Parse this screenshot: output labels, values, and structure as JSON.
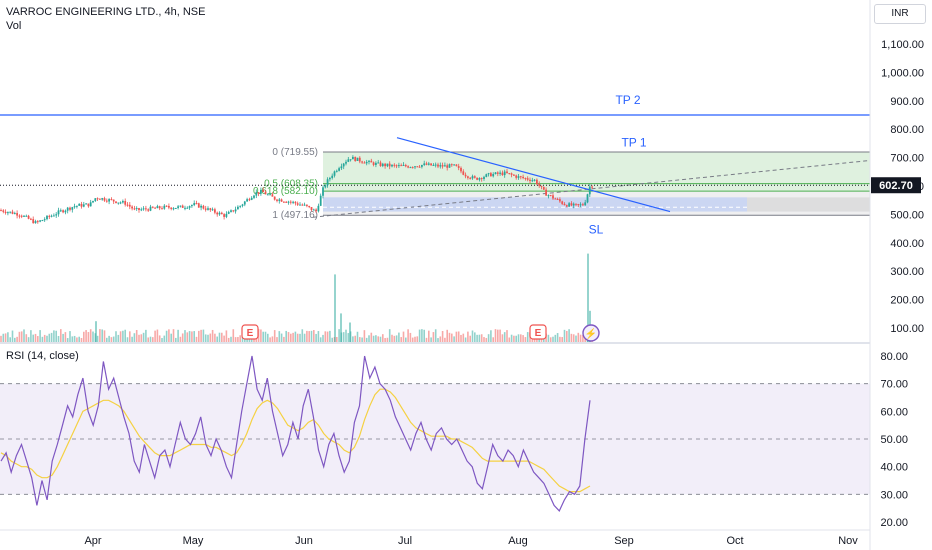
{
  "header": {
    "symbol_line": "VARROC ENGINEERING LTD., 4h, NSE",
    "volume_label": "Vol",
    "rsi_label": "RSI (14, close)",
    "currency": "INR"
  },
  "colors": {
    "up": "#26a69a",
    "down": "#ef5350",
    "target": "#2962ff",
    "fib_green": "#4caf50",
    "rsi_line": "#7e57c2",
    "rsi_ma": "#f5d142"
  },
  "chart_data": [
    {
      "type": "candlestick",
      "title": "VARROC ENGINEERING LTD., 4h, NSE",
      "ylim": [
        20,
        1230
      ],
      "y_ticks": [
        "1,100.00",
        "1,000.00",
        "900.00",
        "800.00",
        "700.00",
        "600.00",
        "500.00",
        "400.00",
        "300.00",
        "200.00",
        "100.00"
      ],
      "y_tick_values": [
        1100,
        1000,
        900,
        800,
        700,
        600,
        500,
        400,
        300,
        200,
        100
      ],
      "x_ticks": [
        "Apr",
        "May",
        "Jun",
        "Jul",
        "Aug",
        "Sep",
        "Oct",
        "Nov"
      ],
      "last_price": "602.70",
      "close_path": [
        [
          0,
          515
        ],
        [
          20,
          500
        ],
        [
          36,
          470
        ],
        [
          48,
          490
        ],
        [
          60,
          510
        ],
        [
          75,
          530
        ],
        [
          90,
          535
        ],
        [
          96,
          560
        ],
        [
          110,
          550
        ],
        [
          125,
          540
        ],
        [
          135,
          515
        ],
        [
          150,
          520
        ],
        [
          165,
          525
        ],
        [
          180,
          525
        ],
        [
          195,
          535
        ],
        [
          210,
          515
        ],
        [
          225,
          495
        ],
        [
          240,
          530
        ],
        [
          255,
          575
        ],
        [
          262,
          580
        ],
        [
          275,
          555
        ],
        [
          290,
          545
        ],
        [
          305,
          530
        ],
        [
          316,
          510
        ],
        [
          324,
          600
        ],
        [
          332,
          640
        ],
        [
          340,
          672
        ],
        [
          350,
          700
        ],
        [
          365,
          685
        ],
        [
          380,
          675
        ],
        [
          395,
          670
        ],
        [
          410,
          670
        ],
        [
          425,
          675
        ],
        [
          440,
          670
        ],
        [
          455,
          670
        ],
        [
          465,
          640
        ],
        [
          475,
          625
        ],
        [
          490,
          640
        ],
        [
          505,
          645
        ],
        [
          520,
          630
        ],
        [
          535,
          620
        ],
        [
          545,
          575
        ],
        [
          555,
          555
        ],
        [
          565,
          535
        ],
        [
          575,
          530
        ],
        [
          584,
          535
        ],
        [
          590,
          600
        ],
        [
          593,
          602.7
        ]
      ],
      "fib": {
        "levels": [
          {
            "label": "0 (719.55)",
            "value": 719.55
          },
          {
            "label": "0.5 (608.35)",
            "value": 608.35
          },
          {
            "label": "0.618 (582.10)",
            "value": 582.1
          },
          {
            "label": "1 (497.16)",
            "value": 497.16
          }
        ]
      },
      "targets": [
        {
          "label": "TP 2",
          "value": 850
        },
        {
          "label": "TP 1",
          "value": 715
        },
        {
          "label": "SL",
          "value": 497
        }
      ],
      "trendline": {
        "start_value": 770,
        "end_value": 510
      },
      "volume": {
        "ylim": [
          0,
          2000
        ],
        "spikes": [
          {
            "x": 96,
            "value": 160
          },
          {
            "x": 335,
            "value": 520
          },
          {
            "x": 341,
            "value": 220
          },
          {
            "x": 350,
            "value": 150
          },
          {
            "x": 588,
            "value": 680
          },
          {
            "x": 590,
            "value": 240
          }
        ]
      },
      "events": [
        {
          "label": "E",
          "x": 250
        },
        {
          "label": "E",
          "x": 538
        }
      ],
      "flash_event": {
        "x": 591,
        "symbol": "⚡"
      }
    },
    {
      "type": "line",
      "title": "RSI (14, close)",
      "ylim": [
        15,
        85
      ],
      "y_ticks": [
        "80.00",
        "70.00",
        "60.00",
        "50.00",
        "40.00",
        "30.00",
        "20.00"
      ],
      "y_tick_values": [
        80,
        70,
        60,
        50,
        40,
        30,
        20
      ],
      "band": [
        30,
        70
      ],
      "midline": 50,
      "series": [
        {
          "values": [
            42,
            45,
            38,
            44,
            48,
            42,
            36,
            26,
            35,
            28,
            42,
            48,
            55,
            62,
            58,
            66,
            72,
            60,
            55,
            62,
            78,
            68,
            72,
            65,
            58,
            52,
            42,
            38,
            48,
            42,
            36,
            44,
            46,
            40,
            48,
            56,
            50,
            48,
            52,
            58,
            48,
            44,
            50,
            46,
            40,
            36,
            48,
            60,
            70,
            80,
            68,
            64,
            72,
            60,
            52,
            44,
            48,
            56,
            50,
            62,
            68,
            58,
            46,
            40,
            48,
            52,
            44,
            38,
            42,
            56,
            62,
            80,
            72,
            76,
            70,
            68,
            64,
            58,
            54,
            50,
            46,
            52,
            56,
            50,
            46,
            52,
            54,
            50,
            48,
            50,
            46,
            42,
            40,
            34,
            32,
            40,
            48,
            44,
            42,
            46,
            44,
            40,
            46,
            42,
            38,
            36,
            34,
            30,
            26,
            24,
            28,
            31,
            30,
            33,
            50,
            64
          ]
        },
        {
          "values": [
            45,
            44,
            42,
            41,
            40,
            40,
            39,
            37,
            36,
            36,
            37,
            40,
            44,
            48,
            52,
            56,
            60,
            61,
            62,
            63,
            64,
            64,
            63,
            62,
            60,
            57,
            54,
            51,
            49,
            47,
            45,
            44,
            44,
            44,
            45,
            46,
            47,
            48,
            48,
            48,
            48,
            47,
            47,
            46,
            45,
            44,
            45,
            48,
            52,
            57,
            61,
            63,
            64,
            63,
            61,
            58,
            55,
            54,
            53,
            54,
            56,
            57,
            55,
            52,
            50,
            49,
            48,
            46,
            45,
            47,
            51,
            57,
            62,
            66,
            68,
            68,
            67,
            65,
            62,
            59,
            56,
            54,
            53,
            52,
            51,
            51,
            51,
            51,
            50,
            50,
            49,
            48,
            47,
            45,
            43,
            42,
            42,
            42,
            42,
            42,
            42,
            42,
            42,
            42,
            41,
            40,
            39,
            37,
            35,
            33,
            32,
            31,
            31,
            31,
            32,
            33
          ]
        }
      ]
    }
  ]
}
